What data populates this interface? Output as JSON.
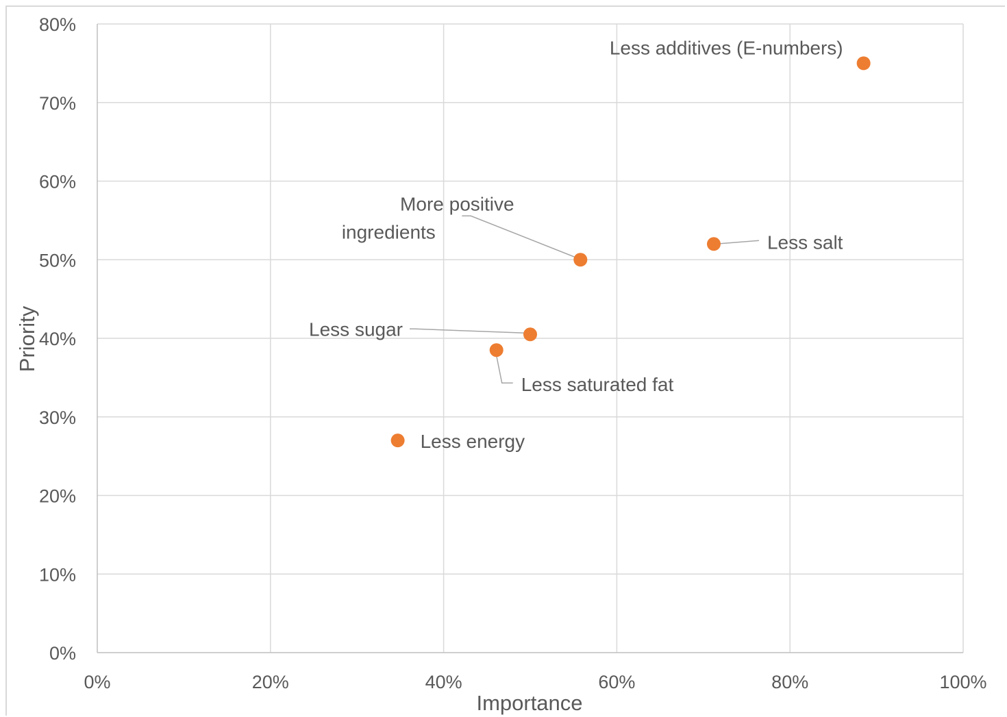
{
  "chart_data": {
    "type": "scatter",
    "xlabel": "Importance",
    "ylabel": "Priority",
    "xlim": [
      0,
      1
    ],
    "ylim": [
      0,
      0.8
    ],
    "x_ticks": [
      "0%",
      "20%",
      "40%",
      "60%",
      "80%",
      "100%"
    ],
    "y_ticks": [
      "0%",
      "10%",
      "20%",
      "30%",
      "40%",
      "50%",
      "60%",
      "70%",
      "80%"
    ],
    "grid": true,
    "marker_color": "#ED7D31",
    "points": [
      {
        "label": "Less additives (E-numbers)",
        "x": 0.885,
        "y": 0.75
      },
      {
        "label": "Less salt",
        "x": 0.712,
        "y": 0.52
      },
      {
        "label": "More positive ingredients",
        "x": 0.558,
        "y": 0.5
      },
      {
        "label": "Less sugar",
        "x": 0.5,
        "y": 0.405
      },
      {
        "label": "Less saturated fat",
        "x": 0.461,
        "y": 0.385
      },
      {
        "label": "Less energy",
        "x": 0.347,
        "y": 0.27
      }
    ]
  }
}
